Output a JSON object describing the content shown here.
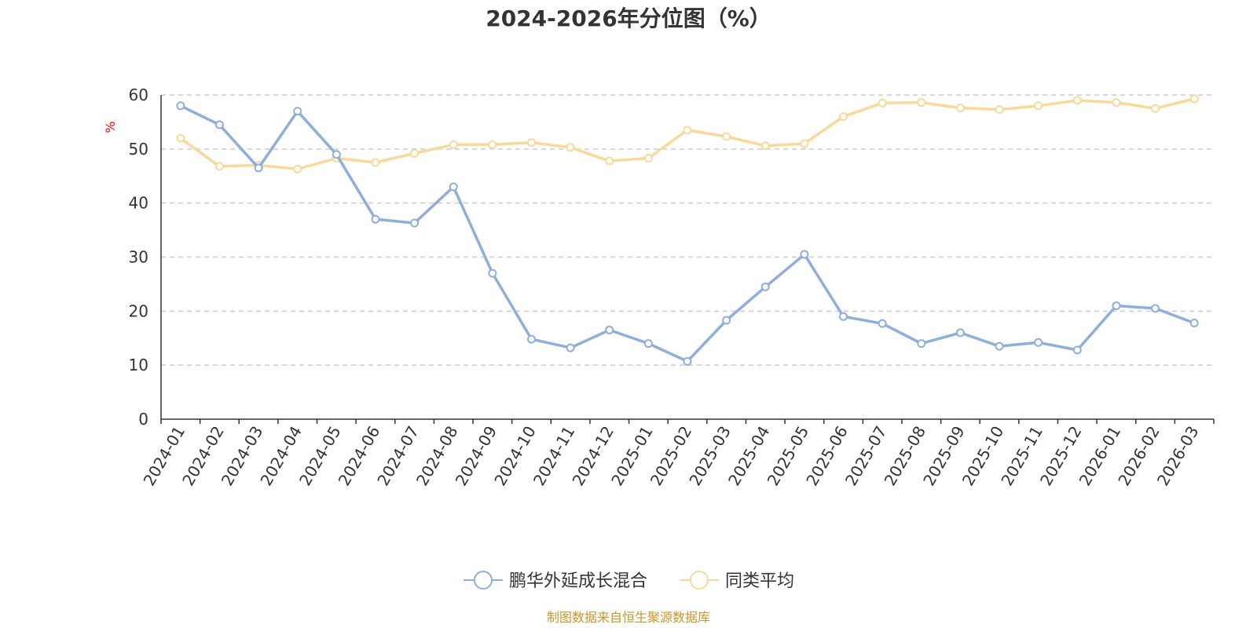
{
  "chart_data": {
    "type": "line",
    "title": "2024-2026年分位图（%）",
    "ylabel": "%",
    "xlabel": "",
    "ylim": [
      0,
      60
    ],
    "yticks": [
      0,
      10,
      20,
      30,
      40,
      50,
      60
    ],
    "grid": true,
    "legend_position": "bottom",
    "categories": [
      "2024-01",
      "2024-02",
      "2024-03",
      "2024-04",
      "2024-05",
      "2024-06",
      "2024-07",
      "2024-08",
      "2024-09",
      "2024-10",
      "2024-11",
      "2024-12",
      "2025-01",
      "2025-02",
      "2025-03",
      "2025-04",
      "2025-05",
      "2025-06",
      "2025-07",
      "2025-08",
      "2025-09",
      "2025-10",
      "2025-11",
      "2025-12",
      "2026-01",
      "2026-02",
      "2026-03"
    ],
    "series": [
      {
        "name": "鹏华外延成长混合",
        "color": "#8eaedb",
        "values": [
          58,
          54.5,
          46.5,
          57,
          49,
          37,
          36.3,
          43,
          27,
          14.8,
          13.2,
          16.5,
          14,
          10.7,
          18.3,
          24.5,
          30.5,
          19,
          17.7,
          14,
          16,
          13.5,
          14.2,
          12.8,
          21,
          20.5,
          17.8
        ]
      },
      {
        "name": "同类平均",
        "color": "#f8d99a",
        "values": [
          52,
          46.8,
          47,
          46.3,
          48.3,
          47.5,
          49.2,
          50.8,
          50.8,
          51.2,
          50.3,
          47.8,
          48.3,
          53.5,
          52.3,
          50.6,
          51,
          56,
          58.5,
          58.6,
          57.6,
          57.3,
          58,
          59,
          58.6,
          57.5,
          59.3
        ]
      }
    ]
  },
  "source_text": "制图数据来自恒生聚源数据库",
  "colors": {
    "unit_label": "#ff0000",
    "source_text": "#c8962a",
    "axis": "#333333",
    "grid": "#cccccc"
  }
}
